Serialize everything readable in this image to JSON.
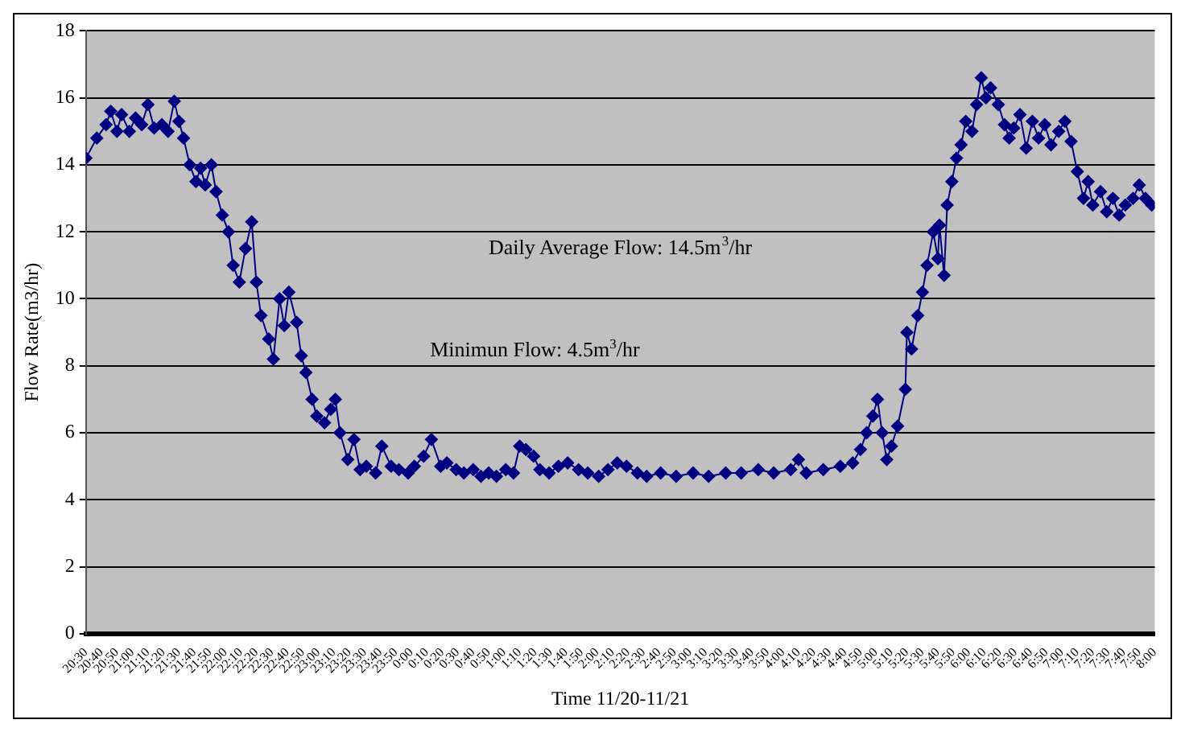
{
  "chart_data": {
    "type": "line",
    "xlabel": "Time 11/20-11/21",
    "ylabel": "Flow Rate(m3/hr)",
    "annotations": [
      "Daily Average Flow: 14.5m$^{3}$/hr",
      "Minimun Flow: 4.5m$^{3}$/hr"
    ],
    "ylim": [
      0,
      18
    ],
    "yticks": [
      0,
      2,
      4,
      6,
      8,
      10,
      12,
      14,
      16,
      18
    ],
    "grid": "y",
    "legend": false,
    "marker": "diamond",
    "line_style": "solid",
    "xlim": [
      "--11-20T20:30",
      "--11-21T08:00"
    ],
    "xticks": [
      {
        "value": "--11-20T20:30",
        "label": "20:30"
      },
      {
        "value": "--11-20T20:40",
        "label": "20:40"
      },
      {
        "value": "--11-20T20:50",
        "label": "20:50"
      },
      {
        "value": "--11-20T21:00",
        "label": "21:00"
      },
      {
        "value": "--11-20T21:10",
        "label": "21:10"
      },
      {
        "value": "--11-20T21:20",
        "label": "21:20"
      },
      {
        "value": "--11-20T21:30",
        "label": "21:30"
      },
      {
        "value": "--11-20T21:40",
        "label": "21:40"
      },
      {
        "value": "--11-20T21:50",
        "label": "21:50"
      },
      {
        "value": "--11-20T22:00",
        "label": "22:00"
      },
      {
        "value": "--11-20T22:10",
        "label": "22:10"
      },
      {
        "value": "--11-20T22:20",
        "label": "22:20"
      },
      {
        "value": "--11-20T22:30",
        "label": "22:30"
      },
      {
        "value": "--11-20T22:40",
        "label": "22:40"
      },
      {
        "value": "--11-20T22:50",
        "label": "22:50"
      },
      {
        "value": "--11-20T23:00",
        "label": "23:00"
      },
      {
        "value": "--11-20T23:10",
        "label": "23:10"
      },
      {
        "value": "--11-20T23:20",
        "label": "23:20"
      },
      {
        "value": "--11-20T23:30",
        "label": "23:30"
      },
      {
        "value": "--11-20T23:40",
        "label": "23:40"
      },
      {
        "value": "--11-20T23:50",
        "label": "23:50"
      },
      {
        "value": "--11-21T00:00",
        "label": "0:00"
      },
      {
        "value": "--11-21T00:10",
        "label": "0:10"
      },
      {
        "value": "--11-21T00:20",
        "label": "0:20"
      },
      {
        "value": "--11-21T00:30",
        "label": "0:30"
      },
      {
        "value": "--11-21T00:40",
        "label": "0:40"
      },
      {
        "value": "--11-21T00:50",
        "label": "0:50"
      },
      {
        "value": "--11-21T01:00",
        "label": "1:00"
      },
      {
        "value": "--11-21T01:10",
        "label": "1:10"
      },
      {
        "value": "--11-21T01:20",
        "label": "1:20"
      },
      {
        "value": "--11-21T01:30",
        "label": "1:30"
      },
      {
        "value": "--11-21T01:40",
        "label": "1:40"
      },
      {
        "value": "--11-21T01:50",
        "label": "1:50"
      },
      {
        "value": "--11-21T02:00",
        "label": "2:00"
      },
      {
        "value": "--11-21T02:10",
        "label": "2:10"
      },
      {
        "value": "--11-21T02:20",
        "label": "2:20"
      },
      {
        "value": "--11-21T02:30",
        "label": "2:30"
      },
      {
        "value": "--11-21T02:40",
        "label": "2:40"
      },
      {
        "value": "--11-21T02:50",
        "label": "2:50"
      },
      {
        "value": "--11-21T03:00",
        "label": "3:00"
      },
      {
        "value": "--11-21T03:10",
        "label": "3:10"
      },
      {
        "value": "--11-21T03:20",
        "label": "3:20"
      },
      {
        "value": "--11-21T03:30",
        "label": "3:30"
      },
      {
        "value": "--11-21T03:40",
        "label": "3:40"
      },
      {
        "value": "--11-21T03:50",
        "label": "3:50"
      },
      {
        "value": "--11-21T04:00",
        "label": "4:00"
      },
      {
        "value": "--11-21T04:10",
        "label": "4:10"
      },
      {
        "value": "--11-21T04:20",
        "label": "4:20"
      },
      {
        "value": "--11-21T04:30",
        "label": "4:30"
      },
      {
        "value": "--11-21T04:40",
        "label": "4:40"
      },
      {
        "value": "--11-21T04:50",
        "label": "4:50"
      },
      {
        "value": "--11-21T05:00",
        "label": "5:00"
      },
      {
        "value": "--11-21T05:10",
        "label": "5:10"
      },
      {
        "value": "--11-21T05:20",
        "label": "5:20"
      },
      {
        "value": "--11-21T05:30",
        "label": "5:30"
      },
      {
        "value": "--11-21T05:40",
        "label": "5:40"
      },
      {
        "value": "--11-21T05:50",
        "label": "5:50"
      },
      {
        "value": "--11-21T06:00",
        "label": "6:00"
      },
      {
        "value": "--11-21T06:10",
        "label": "6:10"
      },
      {
        "value": "--11-21T06:20",
        "label": "6:20"
      },
      {
        "value": "--11-21T06:30",
        "label": "6:30"
      },
      {
        "value": "--11-21T06:40",
        "label": "6:40"
      },
      {
        "value": "--11-21T06:50",
        "label": "6:50"
      },
      {
        "value": "--11-21T07:00",
        "label": "7:00"
      },
      {
        "value": "--11-21T07:10",
        "label": "7:10"
      },
      {
        "value": "--11-21T07:20",
        "label": "7:20"
      },
      {
        "value": "--11-21T07:30",
        "label": "7:30"
      },
      {
        "value": "--11-21T07:40",
        "label": "7:40"
      },
      {
        "value": "--11-21T07:50",
        "label": "7:50"
      },
      {
        "value": "--11-21T08:00",
        "label": "8:00"
      }
    ],
    "series": [
      {
        "color": "#000080",
        "x": [
          "--11-20T20:30",
          "--11-20T20:37",
          "--11-20T20:43",
          "--11-20T20:46",
          "--11-20T20:50",
          "--11-20T20:53",
          "--11-20T20:58",
          "--11-20T21:02",
          "--11-20T21:06",
          "--11-20T21:10",
          "--11-20T21:14",
          "--11-20T21:19",
          "--11-20T21:23",
          "--11-20T21:27",
          "--11-20T21:30",
          "--11-20T21:33",
          "--11-20T21:37",
          "--11-20T21:41",
          "--11-20T21:44",
          "--11-20T21:47",
          "--11-20T21:51",
          "--11-20T21:54",
          "--11-20T21:58",
          "--11-20T22:02",
          "--11-20T22:05",
          "--11-20T22:09",
          "--11-20T22:13",
          "--11-20T22:17",
          "--11-20T22:20",
          "--11-20T22:23",
          "--11-20T22:28",
          "--11-20T22:31",
          "--11-20T22:35",
          "--11-20T22:38",
          "--11-20T22:41",
          "--11-20T22:46",
          "--11-20T22:49",
          "--11-20T22:52",
          "--11-20T22:56",
          "--11-20T22:59",
          "--11-20T23:04",
          "--11-20T23:08",
          "--11-20T23:11",
          "--11-20T23:14",
          "--11-20T23:19",
          "--11-20T23:23",
          "--11-20T23:27",
          "--11-20T23:31",
          "--11-20T23:37",
          "--11-20T23:41",
          "--11-20T23:47",
          "--11-20T23:52",
          "--11-20T23:58",
          "--11-21T00:02",
          "--11-21T00:08",
          "--11-21T00:13",
          "--11-21T00:19",
          "--11-21T00:23",
          "--11-21T00:29",
          "--11-21T00:34",
          "--11-21T00:40",
          "--11-21T00:45",
          "--11-21T00:50",
          "--11-21T00:55",
          "--11-21T01:01",
          "--11-21T01:06",
          "--11-21T01:10",
          "--11-21T01:14",
          "--11-21T01:19",
          "--11-21T01:23",
          "--11-21T01:29",
          "--11-21T01:35",
          "--11-21T01:41",
          "--11-21T01:48",
          "--11-21T01:54",
          "--11-21T02:01",
          "--11-21T02:07",
          "--11-21T02:13",
          "--11-21T02:19",
          "--11-21T02:26",
          "--11-21T02:32",
          "--11-21T02:41",
          "--11-21T02:51",
          "--11-21T03:02",
          "--11-21T03:12",
          "--11-21T03:23",
          "--11-21T03:33",
          "--11-21T03:44",
          "--11-21T03:54",
          "--11-21T04:05",
          "--11-21T04:10",
          "--11-21T04:15",
          "--11-21T04:26",
          "--11-21T04:37",
          "--11-21T04:45",
          "--11-21T04:50",
          "--11-21T04:54",
          "--11-21T04:58",
          "--11-21T05:01",
          "--11-21T05:04",
          "--11-21T05:07",
          "--11-21T05:10",
          "--11-21T05:14",
          "--11-21T05:19",
          "--11-21T05:20",
          "--11-21T05:23",
          "--11-21T05:27",
          "--11-21T05:30",
          "--11-21T05:33",
          "--11-21T05:37",
          "--11-21T05:40",
          "--11-21T05:41",
          "--11-21T05:44",
          "--11-21T05:46",
          "--11-21T05:49",
          "--11-21T05:52",
          "--11-21T05:55",
          "--11-21T05:58",
          "--11-21T06:02",
          "--11-21T06:05",
          "--11-21T06:08",
          "--11-21T06:11",
          "--11-21T06:14",
          "--11-21T06:19",
          "--11-21T06:23",
          "--11-21T06:26",
          "--11-21T06:29",
          "--11-21T06:33",
          "--11-21T06:37",
          "--11-21T06:41",
          "--11-21T06:45",
          "--11-21T06:49",
          "--11-21T06:53",
          "--11-21T06:58",
          "--11-21T07:02",
          "--11-21T07:06",
          "--11-21T07:10",
          "--11-21T07:14",
          "--11-21T07:17",
          "--11-21T07:20",
          "--11-21T07:25",
          "--11-21T07:29",
          "--11-21T07:33",
          "--11-21T07:37",
          "--11-21T07:41",
          "--11-21T07:46",
          "--11-21T07:50",
          "--11-21T07:54",
          "--11-21T07:58"
        ],
        "values": [
          14.2,
          14.8,
          15.2,
          15.6,
          15.0,
          15.5,
          15.0,
          15.4,
          15.2,
          15.8,
          15.1,
          15.2,
          15.0,
          15.9,
          15.3,
          14.8,
          14.0,
          13.5,
          13.9,
          13.4,
          14.0,
          13.2,
          12.5,
          12.0,
          11.0,
          10.5,
          11.5,
          12.3,
          10.5,
          9.5,
          8.8,
          8.2,
          10.0,
          9.2,
          10.2,
          9.3,
          8.3,
          7.8,
          7.0,
          6.5,
          6.3,
          6.7,
          7.0,
          6.0,
          5.2,
          5.8,
          4.9,
          5.0,
          4.8,
          5.6,
          5.0,
          4.9,
          4.8,
          5.0,
          5.3,
          5.8,
          5.0,
          5.1,
          4.9,
          4.8,
          4.9,
          4.7,
          4.8,
          4.7,
          4.9,
          4.8,
          5.6,
          5.5,
          5.3,
          4.9,
          4.8,
          5.0,
          5.1,
          4.9,
          4.8,
          4.7,
          4.9,
          5.1,
          5.0,
          4.8,
          4.7,
          4.8,
          4.7,
          4.8,
          4.7,
          4.8,
          4.8,
          4.9,
          4.8,
          4.9,
          5.2,
          4.8,
          4.9,
          5.0,
          5.1,
          5.5,
          6.0,
          6.5,
          7.0,
          6.0,
          5.2,
          5.6,
          6.2,
          7.3,
          9.0,
          8.5,
          9.5,
          10.2,
          11.0,
          12.0,
          11.2,
          12.2,
          10.7,
          12.8,
          13.5,
          14.2,
          14.6,
          15.3,
          15.0,
          15.8,
          16.6,
          16.0,
          16.3,
          15.8,
          15.2,
          14.8,
          15.1,
          15.5,
          14.5,
          15.3,
          14.8,
          15.2,
          14.6,
          15.0,
          15.3,
          14.7,
          13.8,
          13.0,
          13.5,
          12.8,
          13.2,
          12.6,
          13.0,
          12.5,
          12.8,
          13.0,
          13.4,
          13.0,
          12.8
        ]
      }
    ]
  }
}
